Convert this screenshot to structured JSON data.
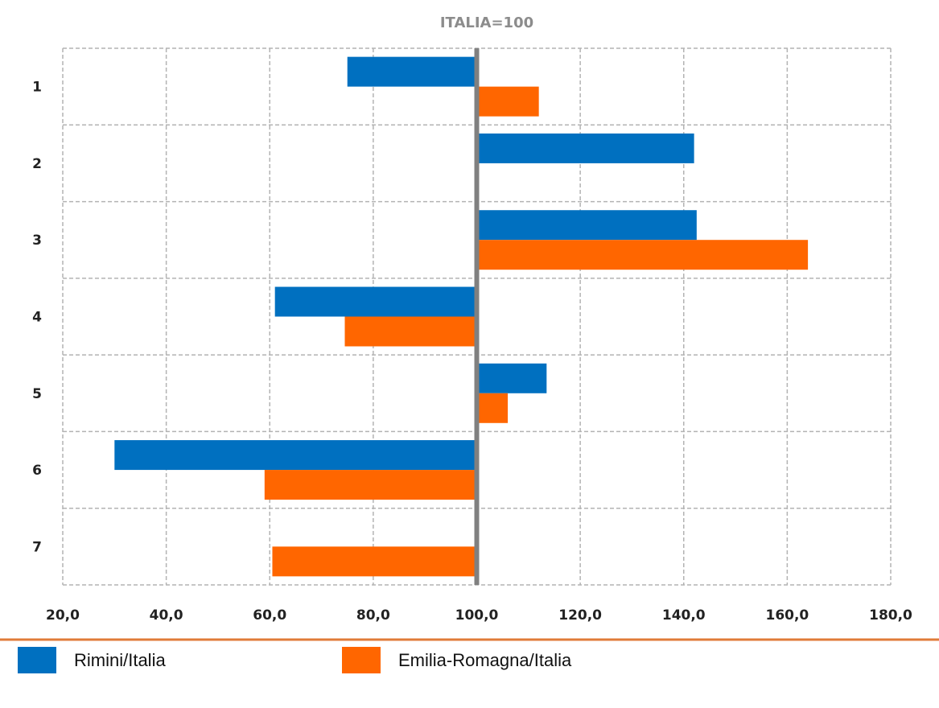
{
  "chart_data": {
    "type": "bar",
    "orientation": "horizontal",
    "title": "ITALIA=100",
    "categories": [
      "1",
      "2",
      "3",
      "4",
      "5",
      "6",
      "7"
    ],
    "baseline": 100,
    "xlim": [
      20,
      180
    ],
    "x_ticks": [
      "20,0",
      "40,0",
      "60,0",
      "80,0",
      "100,0",
      "120,0",
      "140,0",
      "160,0",
      "180,0"
    ],
    "grid": true,
    "legend_position": "bottom",
    "series": [
      {
        "name": "Rimini/Italia",
        "color": "#0070c0",
        "values": [
          75,
          142,
          142.5,
          61,
          113.5,
          30,
          null
        ]
      },
      {
        "name": "Emilia-Romagna/Italia",
        "color": "#ff6600",
        "values": [
          112,
          null,
          164,
          74.5,
          106,
          59,
          60.5
        ]
      }
    ]
  }
}
